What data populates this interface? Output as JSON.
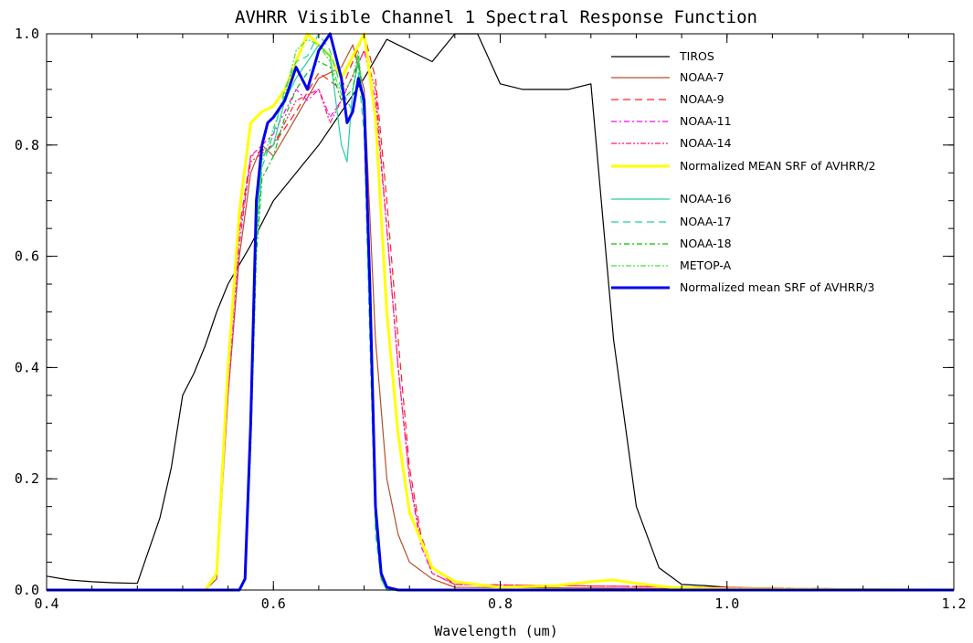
{
  "chart_data": {
    "type": "line",
    "title": "AVHRR Visible Channel 1 Spectral Response Function",
    "xlabel": "Wavelength (um)",
    "ylabel": "",
    "xlim": [
      0.4,
      1.2
    ],
    "ylim": [
      0.0,
      1.0
    ],
    "xticks": [
      "0.4",
      "0.6",
      "0.8",
      "1.0",
      "1.2"
    ],
    "yticks": [
      "0.0",
      "0.2",
      "0.4",
      "0.6",
      "0.8",
      "1.0"
    ],
    "grid": false,
    "legend_position": "top-right",
    "series": [
      {
        "name": "TIROS",
        "color": "#000000",
        "dash": "solid",
        "width": 1.2,
        "x": [
          0.4,
          0.42,
          0.44,
          0.46,
          0.48,
          0.5,
          0.51,
          0.52,
          0.53,
          0.54,
          0.55,
          0.56,
          0.58,
          0.6,
          0.62,
          0.64,
          0.66,
          0.68,
          0.7,
          0.72,
          0.74,
          0.76,
          0.78,
          0.8,
          0.82,
          0.84,
          0.86,
          0.88,
          0.9,
          0.92,
          0.94,
          0.96,
          0.98,
          1.0,
          1.05,
          1.2
        ],
        "y": [
          0.025,
          0.018,
          0.015,
          0.013,
          0.012,
          0.13,
          0.22,
          0.35,
          0.39,
          0.44,
          0.5,
          0.55,
          0.62,
          0.7,
          0.75,
          0.8,
          0.86,
          0.92,
          0.99,
          0.97,
          0.95,
          1.0,
          1.0,
          0.91,
          0.9,
          0.9,
          0.9,
          0.91,
          0.45,
          0.15,
          0.04,
          0.01,
          0.008,
          0.005,
          0.002,
          0.0
        ]
      },
      {
        "name": "NOAA-7",
        "color": "#b5502a",
        "dash": "solid",
        "width": 1.2,
        "x": [
          0.4,
          0.54,
          0.55,
          0.56,
          0.57,
          0.58,
          0.59,
          0.6,
          0.62,
          0.64,
          0.66,
          0.67,
          0.68,
          0.69,
          0.7,
          0.71,
          0.72,
          0.74,
          0.76,
          1.2
        ],
        "y": [
          0.0,
          0.0,
          0.02,
          0.35,
          0.6,
          0.75,
          0.8,
          0.78,
          0.85,
          0.92,
          0.94,
          0.98,
          0.9,
          0.45,
          0.2,
          0.1,
          0.05,
          0.02,
          0.005,
          0.0
        ]
      },
      {
        "name": "NOAA-9",
        "color": "#ff2020",
        "dash": "8,5",
        "width": 1.2,
        "x": [
          0.4,
          0.54,
          0.55,
          0.56,
          0.57,
          0.58,
          0.6,
          0.62,
          0.64,
          0.66,
          0.68,
          0.69,
          0.7,
          0.71,
          0.72,
          0.73,
          0.74,
          0.76,
          1.2
        ],
        "y": [
          0.0,
          0.0,
          0.03,
          0.4,
          0.65,
          0.78,
          0.8,
          0.86,
          0.93,
          0.9,
          1.0,
          0.92,
          0.7,
          0.45,
          0.22,
          0.1,
          0.04,
          0.01,
          0.0
        ]
      },
      {
        "name": "NOAA-11",
        "color": "#ff00ff",
        "dash": "6,3,2,3",
        "width": 1.2,
        "x": [
          0.4,
          0.54,
          0.55,
          0.56,
          0.57,
          0.58,
          0.6,
          0.62,
          0.63,
          0.64,
          0.65,
          0.66,
          0.68,
          0.69,
          0.7,
          0.71,
          0.72,
          0.73,
          0.74,
          0.76,
          1.2
        ],
        "y": [
          0.0,
          0.0,
          0.03,
          0.35,
          0.62,
          0.78,
          0.82,
          0.9,
          0.88,
          0.9,
          0.85,
          0.88,
          0.97,
          0.88,
          0.65,
          0.4,
          0.2,
          0.08,
          0.03,
          0.01,
          0.0
        ]
      },
      {
        "name": "NOAA-14",
        "color": "#ff1f5a",
        "dash": "6,2,2,2,2,2",
        "width": 1.2,
        "x": [
          0.4,
          0.54,
          0.55,
          0.56,
          0.57,
          0.58,
          0.6,
          0.62,
          0.64,
          0.65,
          0.66,
          0.68,
          0.69,
          0.7,
          0.71,
          0.72,
          0.73,
          0.74,
          0.76,
          1.2
        ],
        "y": [
          0.0,
          0.0,
          0.03,
          0.38,
          0.64,
          0.77,
          0.8,
          0.88,
          0.9,
          0.84,
          0.88,
          0.97,
          0.9,
          0.65,
          0.4,
          0.2,
          0.09,
          0.03,
          0.01,
          0.0
        ]
      },
      {
        "name": "Normalized MEAN SRF of AVHRR/2",
        "color": "#ffff00",
        "dash": "solid",
        "width": 3,
        "x": [
          0.4,
          0.54,
          0.55,
          0.56,
          0.57,
          0.58,
          0.59,
          0.6,
          0.61,
          0.62,
          0.63,
          0.64,
          0.65,
          0.66,
          0.67,
          0.68,
          0.69,
          0.7,
          0.71,
          0.72,
          0.74,
          0.76,
          0.8,
          0.85,
          0.88,
          0.9,
          0.92,
          0.95,
          1.0,
          1.2
        ],
        "y": [
          0.0,
          0.0,
          0.03,
          0.4,
          0.68,
          0.84,
          0.86,
          0.87,
          0.9,
          0.95,
          1.0,
          0.98,
          0.96,
          0.92,
          0.96,
          1.0,
          0.85,
          0.5,
          0.28,
          0.14,
          0.04,
          0.015,
          0.005,
          0.008,
          0.015,
          0.018,
          0.012,
          0.005,
          0.002,
          0.0
        ]
      },
      {
        "name": "NOAA-16",
        "color": "#20d0a0",
        "dash": "solid",
        "width": 1.2,
        "x": [
          0.4,
          0.57,
          0.575,
          0.58,
          0.585,
          0.59,
          0.6,
          0.61,
          0.62,
          0.63,
          0.64,
          0.65,
          0.66,
          0.665,
          0.67,
          0.675,
          0.68,
          0.685,
          0.69,
          0.695,
          0.7,
          1.2
        ],
        "y": [
          0.0,
          0.0,
          0.02,
          0.3,
          0.65,
          0.78,
          0.8,
          0.88,
          0.92,
          0.95,
          0.98,
          0.96,
          0.8,
          0.77,
          0.9,
          0.95,
          0.85,
          0.5,
          0.12,
          0.02,
          0.0,
          0.0
        ]
      },
      {
        "name": "NOAA-17",
        "color": "#20d0a0",
        "dash": "8,5",
        "width": 1.2,
        "x": [
          0.4,
          0.57,
          0.575,
          0.58,
          0.585,
          0.59,
          0.6,
          0.61,
          0.62,
          0.63,
          0.64,
          0.65,
          0.66,
          0.67,
          0.675,
          0.68,
          0.685,
          0.69,
          0.695,
          0.7,
          1.2
        ],
        "y": [
          0.0,
          0.0,
          0.02,
          0.28,
          0.62,
          0.76,
          0.82,
          0.9,
          0.95,
          0.96,
          1.0,
          0.97,
          0.9,
          0.86,
          0.93,
          0.82,
          0.45,
          0.1,
          0.02,
          0.0,
          0.0
        ]
      },
      {
        "name": "NOAA-18",
        "color": "#00c000",
        "dash": "6,3,2,3",
        "width": 1.2,
        "x": [
          0.4,
          0.57,
          0.575,
          0.58,
          0.585,
          0.59,
          0.6,
          0.61,
          0.62,
          0.63,
          0.64,
          0.65,
          0.66,
          0.67,
          0.675,
          0.68,
          0.685,
          0.69,
          0.695,
          0.7,
          1.2
        ],
        "y": [
          0.0,
          0.0,
          0.02,
          0.25,
          0.6,
          0.74,
          0.78,
          0.85,
          0.9,
          0.93,
          0.95,
          0.94,
          0.88,
          0.9,
          0.96,
          0.85,
          0.48,
          0.12,
          0.02,
          0.0,
          0.0
        ]
      },
      {
        "name": "METOP-A",
        "color": "#40e040",
        "dash": "6,2,2,2,2,2",
        "width": 1.2,
        "x": [
          0.4,
          0.57,
          0.575,
          0.58,
          0.585,
          0.59,
          0.6,
          0.61,
          0.62,
          0.63,
          0.64,
          0.65,
          0.66,
          0.67,
          0.675,
          0.68,
          0.685,
          0.69,
          0.695,
          0.7,
          1.2
        ],
        "y": [
          0.0,
          0.0,
          0.02,
          0.27,
          0.63,
          0.77,
          0.83,
          0.89,
          0.97,
          0.99,
          0.98,
          0.95,
          0.89,
          0.92,
          0.97,
          0.86,
          0.5,
          0.13,
          0.02,
          0.0,
          0.0
        ]
      },
      {
        "name": "Normalized mean SRF of AVHRR/3",
        "color": "#0000ee",
        "dash": "solid",
        "width": 3,
        "x": [
          0.4,
          0.57,
          0.575,
          0.58,
          0.585,
          0.59,
          0.595,
          0.6,
          0.61,
          0.62,
          0.63,
          0.64,
          0.65,
          0.66,
          0.665,
          0.67,
          0.675,
          0.68,
          0.685,
          0.69,
          0.695,
          0.7,
          0.71,
          1.2
        ],
        "y": [
          0.0,
          0.0,
          0.02,
          0.3,
          0.7,
          0.8,
          0.84,
          0.85,
          0.88,
          0.94,
          0.9,
          0.97,
          1.0,
          0.92,
          0.84,
          0.86,
          0.92,
          0.88,
          0.55,
          0.15,
          0.03,
          0.005,
          0.0,
          0.0
        ]
      }
    ]
  }
}
